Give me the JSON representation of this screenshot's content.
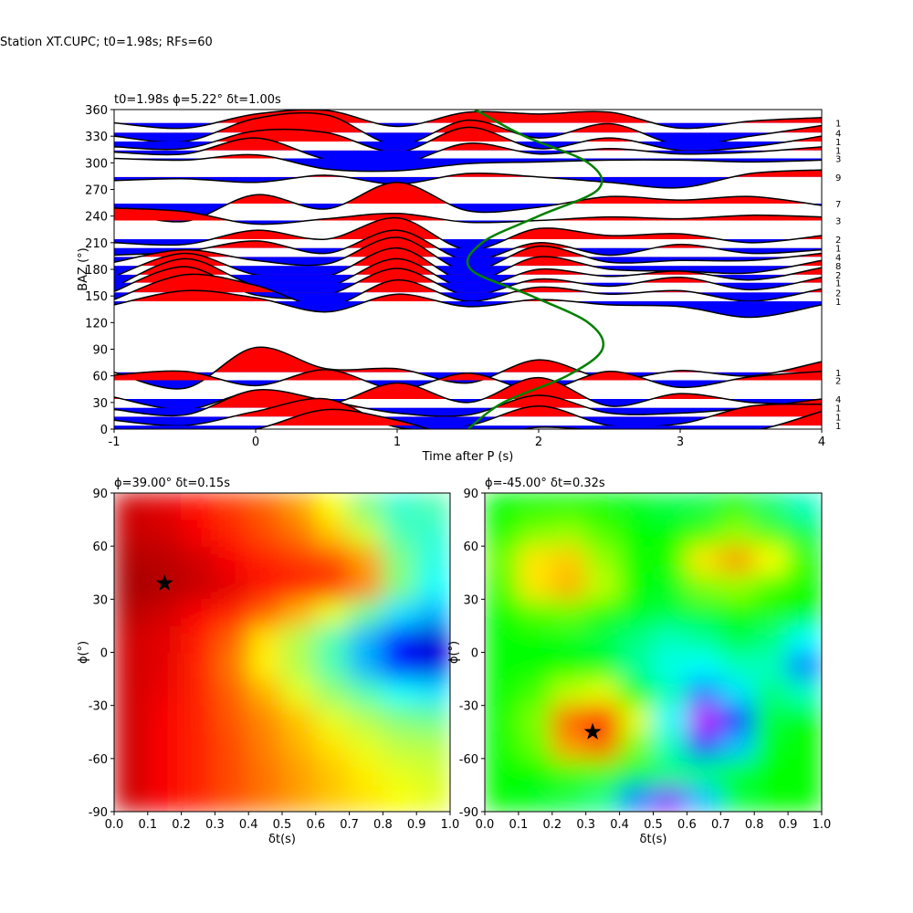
{
  "title": "Station XT.CUPC; t0=1.98s; RFs=60",
  "chart_data": [
    {
      "type": "wiggle",
      "title": "t0=1.98s ϕ=5.22° δt=1.00s",
      "xlabel": "Time after P (s)",
      "ylabel": "BAZ (°)",
      "xlim": [
        -1,
        4
      ],
      "xticks": [
        -1,
        0,
        1,
        2,
        3,
        4
      ],
      "ylim": [
        0,
        360
      ],
      "yticks": [
        0,
        30,
        60,
        90,
        120,
        150,
        180,
        210,
        240,
        270,
        300,
        330,
        360
      ],
      "x": [
        -1,
        -0.5,
        0,
        0.5,
        1,
        1.5,
        2,
        2.5,
        3,
        3.5,
        4
      ],
      "pos_color": "#ff0000",
      "neg_color": "#0000ff",
      "line_color": "#000000",
      "traces": [
        {
          "baz": 345,
          "count": 1,
          "values": [
            0,
            -6,
            10,
            14,
            -4,
            12,
            10,
            12,
            -6,
            2,
            6
          ]
        },
        {
          "baz": 334,
          "count": 4,
          "values": [
            -4,
            -10,
            16,
            20,
            -14,
            14,
            -6,
            10,
            -14,
            -4,
            8
          ]
        },
        {
          "baz": 324,
          "count": 1,
          "values": [
            -6,
            -8,
            12,
            10,
            -12,
            16,
            -8,
            4,
            -10,
            -6,
            6
          ]
        },
        {
          "baz": 314,
          "count": 1,
          "values": [
            -2,
            -4,
            14,
            -10,
            -16,
            8,
            -4,
            2,
            -4,
            -2,
            4
          ]
        },
        {
          "baz": 305,
          "count": 3,
          "values": [
            0,
            -2,
            4,
            -12,
            -14,
            -6,
            -4,
            -2,
            -2,
            -4,
            -2
          ]
        },
        {
          "baz": 284,
          "count": 9,
          "values": [
            -4,
            -2,
            -6,
            2,
            -8,
            4,
            0,
            -6,
            -12,
            4,
            8
          ]
        },
        {
          "baz": 254,
          "count": 7,
          "values": [
            -8,
            -20,
            10,
            -6,
            24,
            -8,
            -4,
            8,
            4,
            8,
            -2
          ]
        },
        {
          "baz": 235,
          "count": 3,
          "values": [
            14,
            10,
            -4,
            2,
            8,
            -2,
            0,
            4,
            2,
            6,
            4
          ]
        },
        {
          "baz": 214,
          "count": 2,
          "values": [
            -4,
            -6,
            10,
            0,
            24,
            -12,
            12,
            4,
            6,
            -4,
            4
          ]
        },
        {
          "baz": 204,
          "count": 1,
          "values": [
            -8,
            -4,
            8,
            -6,
            20,
            -14,
            6,
            -8,
            4,
            -6,
            -2
          ]
        },
        {
          "baz": 194,
          "count": 4,
          "values": [
            -6,
            8,
            -4,
            -8,
            22,
            -16,
            12,
            -6,
            -4,
            -4,
            4
          ]
        },
        {
          "baz": 184,
          "count": 8,
          "values": [
            -12,
            14,
            -10,
            -12,
            20,
            -18,
            10,
            -4,
            -6,
            -8,
            6
          ]
        },
        {
          "baz": 174,
          "count": 2,
          "values": [
            -14,
            18,
            -12,
            -14,
            18,
            -16,
            6,
            -2,
            4,
            -6,
            8
          ]
        },
        {
          "baz": 165,
          "count": 1,
          "values": [
            -10,
            18,
            -14,
            -14,
            16,
            -14,
            4,
            -4,
            6,
            -8,
            6
          ]
        },
        {
          "baz": 154,
          "count": 2,
          "values": [
            -8,
            20,
            8,
            -16,
            14,
            -10,
            6,
            -2,
            2,
            -10,
            4
          ]
        },
        {
          "baz": 144,
          "count": 1,
          "values": [
            -4,
            12,
            4,
            -12,
            8,
            -6,
            2,
            -4,
            -6,
            -18,
            -4
          ]
        },
        {
          "baz": 64,
          "count": 1,
          "values": [
            0,
            -18,
            28,
            4,
            4,
            -12,
            14,
            -8,
            2,
            -4,
            12
          ]
        },
        {
          "baz": 55,
          "count": 2,
          "values": [
            6,
            10,
            -6,
            12,
            -10,
            8,
            -12,
            10,
            -8,
            4,
            10
          ]
        },
        {
          "baz": 34,
          "count": 4,
          "values": [
            2,
            -12,
            8,
            -6,
            18,
            -4,
            24,
            -8,
            6,
            -4,
            -6
          ]
        },
        {
          "baz": 24,
          "count": 1,
          "values": [
            -2,
            -8,
            20,
            8,
            -6,
            -8,
            14,
            -6,
            -6,
            0,
            10
          ]
        },
        {
          "baz": 14,
          "count": 1,
          "values": [
            -4,
            -10,
            6,
            20,
            -12,
            -10,
            12,
            -10,
            -8,
            12,
            14
          ]
        },
        {
          "baz": 4,
          "count": 1,
          "values": [
            -8,
            -12,
            -4,
            18,
            6,
            -14,
            -2,
            -6,
            -4,
            -6,
            16
          ]
        }
      ],
      "curve": {
        "color": "#008000",
        "x": [
          1.5,
          1.75,
          2.2,
          2.45,
          2.35,
          1.95,
          1.52,
          1.6,
          2.0,
          2.42,
          2.35,
          1.9,
          1.55
        ],
        "y": [
          0,
          30,
          60,
          90,
          120,
          150,
          180,
          210,
          240,
          270,
          300,
          330,
          360
        ]
      }
    },
    {
      "type": "heatmap",
      "title": "ϕ=39.00° δt=0.15s",
      "xlabel": "δt(s)",
      "ylabel": "ϕ(°)",
      "xlim": [
        0,
        1
      ],
      "xticks": [
        {
          "value": 0,
          "label": "0.0"
        },
        0.1,
        0.2,
        0.3,
        0.4,
        0.5,
        0.6,
        0.7,
        0.8,
        0.9,
        {
          "value": 1,
          "label": "1.0"
        }
      ],
      "ylim": [
        -90,
        90
      ],
      "yticks": [
        -90,
        -60,
        -30,
        0,
        30,
        60,
        90
      ],
      "colormap": [
        {
          "value": 0,
          "color": "#00007f"
        },
        {
          "value": 0.125,
          "color": "#0000ff"
        },
        {
          "value": 0.375,
          "color": "#00ffff"
        },
        {
          "value": 0.625,
          "color": "#ffff00"
        },
        {
          "value": 0.875,
          "color": "#ff0000"
        },
        {
          "value": 1,
          "color": "#7f0000"
        }
      ],
      "values": [
        [
          0.92,
          0.88,
          0.84,
          0.8,
          0.76,
          0.72,
          0.68,
          0.65,
          0.62,
          0.6
        ],
        [
          0.92,
          0.88,
          0.84,
          0.8,
          0.76,
          0.72,
          0.68,
          0.64,
          0.6,
          0.58
        ],
        [
          0.92,
          0.88,
          0.84,
          0.8,
          0.75,
          0.7,
          0.65,
          0.6,
          0.56,
          0.55
        ],
        [
          0.92,
          0.88,
          0.84,
          0.79,
          0.74,
          0.68,
          0.6,
          0.55,
          0.5,
          0.48
        ],
        [
          0.92,
          0.89,
          0.84,
          0.78,
          0.7,
          0.6,
          0.52,
          0.45,
          0.38,
          0.35
        ],
        [
          0.92,
          0.9,
          0.84,
          0.76,
          0.64,
          0.55,
          0.45,
          0.3,
          0.15,
          0.1
        ],
        [
          0.92,
          0.9,
          0.85,
          0.78,
          0.65,
          0.55,
          0.45,
          0.3,
          0.15,
          0.08
        ],
        [
          0.94,
          0.92,
          0.88,
          0.84,
          0.78,
          0.7,
          0.6,
          0.48,
          0.35,
          0.3
        ],
        [
          0.96,
          0.95,
          0.93,
          0.9,
          0.86,
          0.84,
          0.82,
          0.74,
          0.5,
          0.38
        ],
        [
          0.95,
          0.94,
          0.92,
          0.88,
          0.84,
          0.82,
          0.8,
          0.72,
          0.5,
          0.4
        ],
        [
          0.93,
          0.92,
          0.88,
          0.84,
          0.8,
          0.76,
          0.68,
          0.58,
          0.45,
          0.42
        ],
        [
          0.92,
          0.9,
          0.86,
          0.82,
          0.78,
          0.72,
          0.62,
          0.5,
          0.42,
          0.45
        ]
      ],
      "marker": {
        "x": 0.15,
        "y": 39,
        "color": "#000000"
      }
    },
    {
      "type": "heatmap",
      "title": "ϕ=-45.00° δt=0.32s",
      "xlabel": "δt(s)",
      "ylabel": "ϕ(°)",
      "xlim": [
        0,
        1
      ],
      "xticks": [
        {
          "value": 0,
          "label": "0.0"
        },
        0.1,
        0.2,
        0.3,
        0.4,
        0.5,
        0.6,
        0.7,
        0.8,
        0.9,
        {
          "value": 1,
          "label": "1.0"
        }
      ],
      "ylim": [
        -90,
        90
      ],
      "yticks": [
        -90,
        -60,
        -30,
        0,
        30,
        60,
        90
      ],
      "colormap": [
        {
          "value": 0,
          "color": "#ff00ff"
        },
        {
          "value": 0.2,
          "color": "#0000ff"
        },
        {
          "value": 0.4,
          "color": "#00ffff"
        },
        {
          "value": 0.6,
          "color": "#00ff00"
        },
        {
          "value": 0.8,
          "color": "#ffff00"
        },
        {
          "value": 1,
          "color": "#ff0000"
        }
      ],
      "values": [
        [
          0.6,
          0.58,
          0.55,
          0.5,
          0.3,
          0.1,
          0.35,
          0.55,
          0.6,
          0.6
        ],
        [
          0.6,
          0.6,
          0.65,
          0.66,
          0.55,
          0.5,
          0.5,
          0.55,
          0.6,
          0.6
        ],
        [
          0.6,
          0.68,
          0.88,
          0.92,
          0.7,
          0.45,
          0.25,
          0.35,
          0.58,
          0.6
        ],
        [
          0.6,
          0.7,
          0.92,
          1.0,
          0.78,
          0.4,
          0.05,
          0.2,
          0.55,
          0.6
        ],
        [
          0.6,
          0.65,
          0.75,
          0.78,
          0.6,
          0.45,
          0.3,
          0.38,
          0.5,
          0.45
        ],
        [
          0.6,
          0.6,
          0.6,
          0.58,
          0.48,
          0.42,
          0.4,
          0.45,
          0.45,
          0.3
        ],
        [
          0.6,
          0.6,
          0.58,
          0.55,
          0.5,
          0.45,
          0.48,
          0.55,
          0.5,
          0.4
        ],
        [
          0.6,
          0.66,
          0.68,
          0.62,
          0.58,
          0.55,
          0.56,
          0.6,
          0.62,
          0.6
        ],
        [
          0.65,
          0.82,
          0.86,
          0.75,
          0.6,
          0.58,
          0.7,
          0.72,
          0.65,
          0.6
        ],
        [
          0.68,
          0.82,
          0.84,
          0.72,
          0.6,
          0.62,
          0.82,
          0.88,
          0.8,
          0.62
        ],
        [
          0.62,
          0.7,
          0.72,
          0.66,
          0.6,
          0.6,
          0.65,
          0.72,
          0.66,
          0.55
        ],
        [
          0.6,
          0.6,
          0.6,
          0.6,
          0.58,
          0.55,
          0.55,
          0.6,
          0.52,
          0.45
        ]
      ],
      "marker": {
        "x": 0.32,
        "y": -45,
        "color": "#000000"
      }
    }
  ]
}
